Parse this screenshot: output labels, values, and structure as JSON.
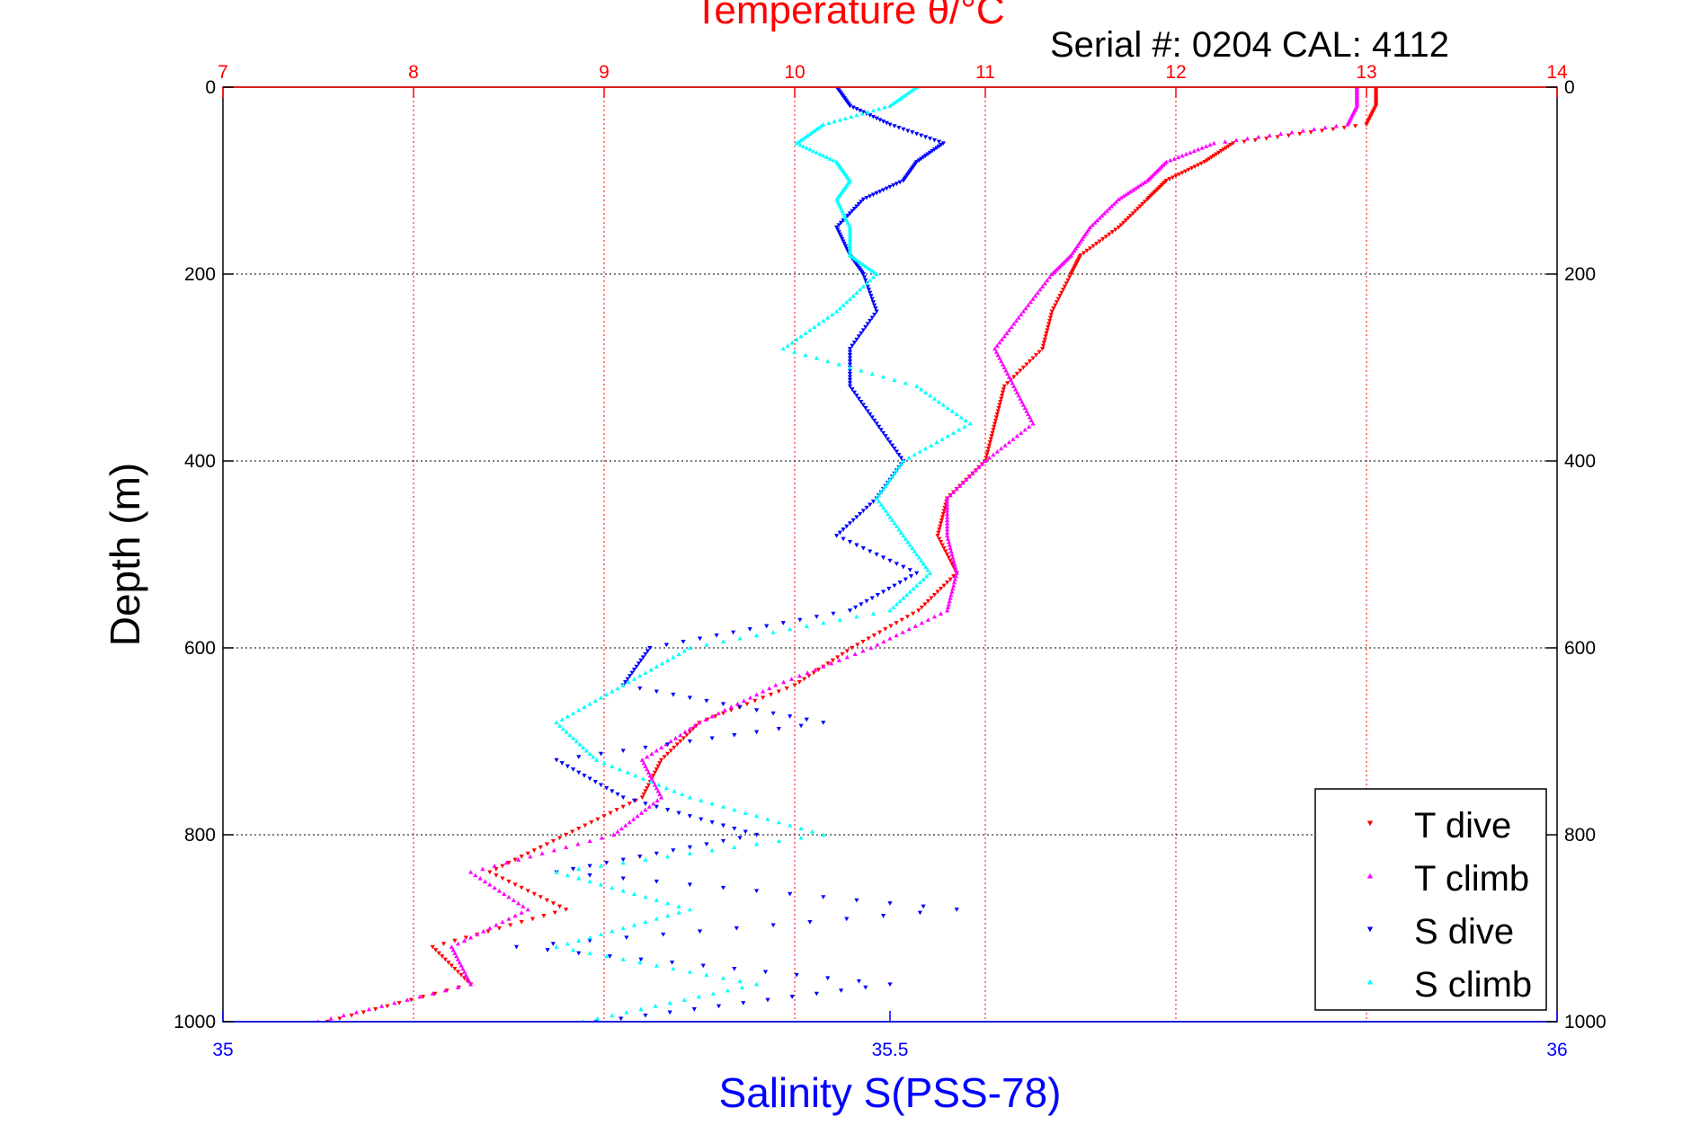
{
  "chart_data": {
    "type": "scatter",
    "title": "Temperature θ/°C",
    "subtitle": "Serial #: 0204  CAL: 4112",
    "ylabel": "Depth (m)",
    "xlabel": "Salinity S(PSS-78)",
    "y_reversed": true,
    "ylim": [
      0,
      1000
    ],
    "y_ticks": [
      0,
      200,
      400,
      600,
      800,
      1000
    ],
    "temperature_axis": {
      "position": "top",
      "lim": [
        7,
        14
      ],
      "ticks": [
        7,
        8,
        9,
        10,
        11,
        12,
        13,
        14
      ],
      "color": "#ff0000"
    },
    "salinity_axis": {
      "position": "bottom",
      "lim": [
        35,
        36
      ],
      "ticks": [
        35,
        35.5,
        36
      ],
      "color": "#0000ff"
    },
    "grid": true,
    "legend": "bottom-right",
    "series": [
      {
        "name": "T dive",
        "axis": "temperature",
        "color": "#ff0000",
        "marker": "triangle-down",
        "depth": [
          0,
          20,
          40,
          60,
          80,
          100,
          120,
          150,
          180,
          200,
          240,
          280,
          320,
          360,
          400,
          440,
          480,
          520,
          560,
          600,
          640,
          680,
          720,
          760,
          800,
          840,
          880,
          920,
          960,
          1000
        ],
        "values": [
          13.05,
          13.05,
          13.0,
          12.3,
          12.15,
          11.95,
          11.85,
          11.7,
          11.5,
          11.45,
          11.35,
          11.3,
          11.1,
          11.05,
          11.0,
          10.8,
          10.75,
          10.85,
          10.65,
          10.3,
          10.0,
          9.5,
          9.3,
          9.2,
          8.8,
          8.4,
          8.8,
          8.1,
          8.3,
          7.55
        ]
      },
      {
        "name": "T climb",
        "axis": "temperature",
        "color": "#ff00ff",
        "marker": "triangle-up",
        "depth": [
          0,
          20,
          40,
          60,
          80,
          100,
          120,
          150,
          180,
          200,
          240,
          280,
          320,
          360,
          400,
          440,
          480,
          520,
          560,
          600,
          640,
          680,
          720,
          760,
          800,
          840,
          880,
          920,
          960,
          1000
        ],
        "values": [
          12.95,
          12.95,
          12.9,
          12.2,
          11.95,
          11.85,
          11.7,
          11.55,
          11.45,
          11.35,
          11.2,
          11.05,
          11.15,
          11.25,
          11.0,
          10.8,
          10.8,
          10.85,
          10.8,
          10.4,
          9.9,
          9.5,
          9.2,
          9.3,
          9.05,
          8.3,
          8.6,
          8.2,
          8.3,
          7.5
        ]
      },
      {
        "name": "S dive",
        "axis": "salinity",
        "color": "#0000ff",
        "marker": "triangle-down",
        "depth": [
          0,
          20,
          40,
          60,
          80,
          100,
          120,
          150,
          180,
          200,
          240,
          280,
          320,
          360,
          400,
          440,
          480,
          520,
          560,
          600,
          640,
          680,
          720,
          760,
          800,
          840,
          880,
          920,
          960,
          1000
        ],
        "values": [
          35.46,
          35.47,
          35.5,
          35.54,
          35.52,
          35.51,
          35.48,
          35.46,
          35.47,
          35.48,
          35.49,
          35.47,
          35.47,
          35.49,
          35.51,
          35.49,
          35.46,
          35.52,
          35.47,
          35.32,
          35.3,
          35.45,
          35.25,
          35.3,
          35.4,
          35.25,
          35.55,
          35.22,
          35.5,
          35.28
        ]
      },
      {
        "name": "S climb",
        "axis": "salinity",
        "color": "#00ffff",
        "marker": "triangle-up",
        "depth": [
          0,
          20,
          40,
          60,
          80,
          100,
          120,
          150,
          180,
          200,
          240,
          280,
          320,
          360,
          400,
          440,
          480,
          520,
          560,
          600,
          640,
          680,
          720,
          760,
          800,
          840,
          880,
          920,
          960,
          1000
        ],
        "values": [
          35.52,
          35.5,
          35.45,
          35.43,
          35.46,
          35.47,
          35.46,
          35.47,
          35.47,
          35.49,
          35.46,
          35.42,
          35.52,
          35.56,
          35.51,
          35.49,
          35.51,
          35.53,
          35.5,
          35.35,
          35.3,
          35.25,
          35.28,
          35.35,
          35.45,
          35.25,
          35.35,
          35.25,
          35.4,
          35.27
        ]
      }
    ]
  }
}
